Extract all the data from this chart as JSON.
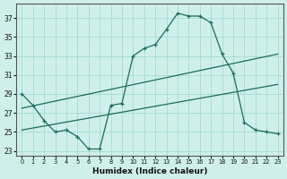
{
  "xlabel": "Humidex (Indice chaleur)",
  "bg_color": "#cff0ea",
  "grid_color": "#a8ddd6",
  "line_color": "#1a6b5e",
  "xlim": [
    -0.5,
    23.5
  ],
  "ylim": [
    22.5,
    38.5
  ],
  "yticks": [
    23,
    25,
    27,
    29,
    31,
    33,
    35,
    37
  ],
  "xticks": [
    0,
    1,
    2,
    3,
    4,
    5,
    6,
    7,
    8,
    9,
    10,
    11,
    12,
    13,
    14,
    15,
    16,
    17,
    18,
    19,
    20,
    21,
    22,
    23
  ],
  "curve1_x": [
    0,
    1,
    2,
    3,
    4,
    5,
    6,
    7,
    8,
    9,
    10,
    11,
    12,
    13,
    14,
    15,
    16,
    17,
    18,
    19,
    20,
    21,
    22,
    23
  ],
  "curve1_y": [
    29.0,
    27.8,
    26.2,
    25.0,
    25.2,
    24.5,
    23.2,
    23.2,
    27.8,
    28.0,
    33.0,
    33.8,
    34.2,
    35.8,
    37.5,
    37.2,
    37.2,
    36.5,
    33.2,
    31.2,
    26.0,
    25.2,
    25.0,
    24.8
  ],
  "curve3_x": [
    0,
    23
  ],
  "curve3_y": [
    25.2,
    30.0
  ],
  "curve4_x": [
    0,
    23
  ],
  "curve4_y": [
    27.5,
    33.2
  ]
}
